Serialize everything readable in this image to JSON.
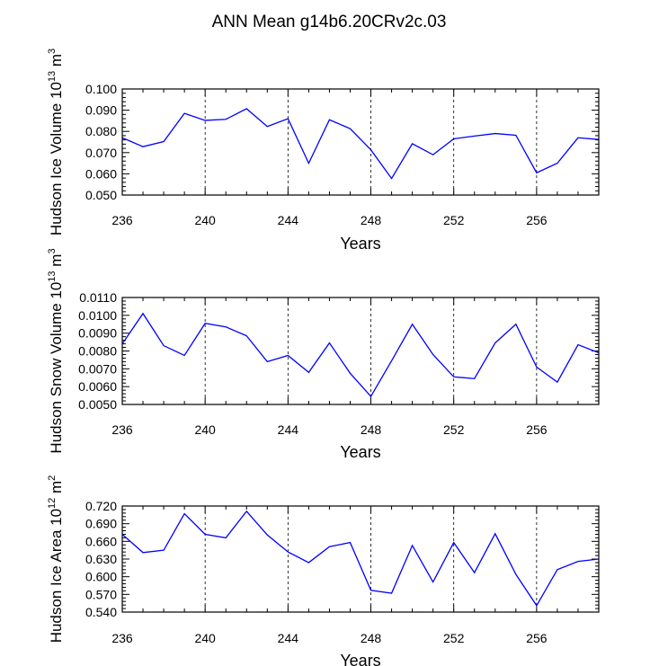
{
  "title": "ANN Mean g14b6.20CRv2c.03",
  "colors": {
    "line": "#0000ff",
    "axis": "#000000",
    "grid": "#000000"
  },
  "chart_data": [
    {
      "type": "line",
      "ylabel": "Hudson Ice Volume 10",
      "ylabel_sup": "13",
      "ylabel_unit": " m",
      "ylabel_unit_sup": "3",
      "xlabel": "Years",
      "xlim": [
        236,
        259
      ],
      "ylim": [
        0.05,
        0.1
      ],
      "xticks": [
        236,
        240,
        244,
        248,
        252,
        256
      ],
      "xtick_labels": [
        "236",
        "240",
        "244",
        "248",
        "252",
        "256"
      ],
      "yticks": [
        0.05,
        0.06,
        0.07,
        0.08,
        0.09,
        0.1
      ],
      "ytick_labels": [
        "0.050",
        "0.060",
        "0.070",
        "0.080",
        "0.090",
        "0.100"
      ],
      "y_minor_step": 0.002,
      "vgrid_dashed": [
        240,
        244,
        248,
        252,
        256
      ],
      "x": [
        236,
        237,
        238,
        239,
        240,
        241,
        242,
        243,
        244,
        245,
        246,
        247,
        248,
        249,
        250,
        251,
        252,
        253,
        254,
        255,
        256,
        257,
        258,
        259
      ],
      "values": [
        0.077,
        0.0728,
        0.0752,
        0.0885,
        0.0852,
        0.0857,
        0.0907,
        0.0823,
        0.086,
        0.065,
        0.0855,
        0.0813,
        0.0713,
        0.0578,
        0.0742,
        0.069,
        0.0765,
        0.0778,
        0.079,
        0.0782,
        0.0605,
        0.065,
        0.077,
        0.0762
      ]
    },
    {
      "type": "line",
      "ylabel": "Hudson Snow Volume 10",
      "ylabel_sup": "13",
      "ylabel_unit": " m",
      "ylabel_unit_sup": "3",
      "xlabel": "Years",
      "xlim": [
        236,
        259
      ],
      "ylim": [
        0.005,
        0.011
      ],
      "xticks": [
        236,
        240,
        244,
        248,
        252,
        256
      ],
      "xtick_labels": [
        "236",
        "240",
        "244",
        "248",
        "252",
        "256"
      ],
      "yticks": [
        0.005,
        0.006,
        0.007,
        0.008,
        0.009,
        0.01,
        0.011
      ],
      "ytick_labels": [
        "0.0050",
        "0.0060",
        "0.0070",
        "0.0080",
        "0.0090",
        "0.0100",
        "0.0110"
      ],
      "y_minor_step": 0.0002,
      "vgrid_dashed": [
        240,
        244,
        248,
        252,
        256
      ],
      "x": [
        236,
        237,
        238,
        239,
        240,
        241,
        242,
        243,
        244,
        245,
        246,
        247,
        248,
        249,
        250,
        251,
        252,
        253,
        254,
        255,
        256,
        257,
        258,
        259
      ],
      "values": [
        0.0084,
        0.0101,
        0.0083,
        0.00775,
        0.00955,
        0.00935,
        0.00885,
        0.0074,
        0.00775,
        0.0068,
        0.00845,
        0.00675,
        0.00545,
        0.00745,
        0.0095,
        0.0078,
        0.00655,
        0.00645,
        0.00845,
        0.0095,
        0.0071,
        0.00625,
        0.00835,
        0.0079
      ]
    },
    {
      "type": "line",
      "ylabel": "Hudson Ice Area 10",
      "ylabel_sup": "12",
      "ylabel_unit": " m",
      "ylabel_unit_sup": "2",
      "xlabel": "Years",
      "xlim": [
        236,
        259
      ],
      "ylim": [
        0.54,
        0.72
      ],
      "xticks": [
        236,
        240,
        244,
        248,
        252,
        256
      ],
      "xtick_labels": [
        "236",
        "240",
        "244",
        "248",
        "252",
        "256"
      ],
      "yticks": [
        0.54,
        0.57,
        0.6,
        0.63,
        0.66,
        0.69,
        0.72
      ],
      "ytick_labels": [
        "0.540",
        "0.570",
        "0.600",
        "0.630",
        "0.660",
        "0.690",
        "0.720"
      ],
      "y_minor_step": 0.006,
      "vgrid_dashed": [
        240,
        244,
        248,
        252,
        256
      ],
      "x": [
        236,
        237,
        238,
        239,
        240,
        241,
        242,
        243,
        244,
        245,
        246,
        247,
        248,
        249,
        250,
        251,
        252,
        253,
        254,
        255,
        256,
        257,
        258,
        259
      ],
      "values": [
        0.672,
        0.641,
        0.645,
        0.707,
        0.672,
        0.666,
        0.711,
        0.671,
        0.642,
        0.624,
        0.651,
        0.658,
        0.577,
        0.572,
        0.653,
        0.591,
        0.658,
        0.607,
        0.673,
        0.604,
        0.551,
        0.612,
        0.626,
        0.63
      ]
    }
  ]
}
